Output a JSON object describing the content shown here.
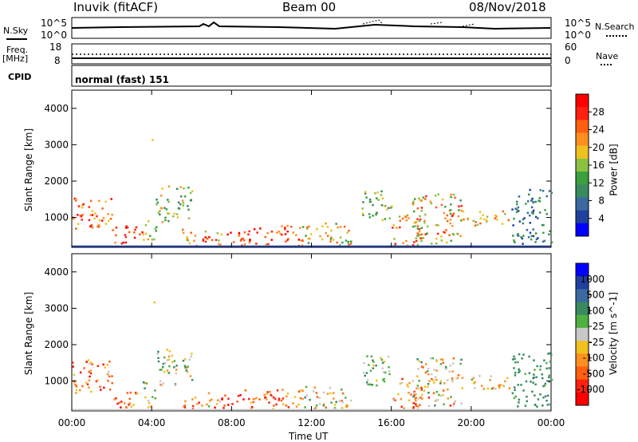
{
  "header": {
    "station": "Inuvik (fitACF)",
    "beam": "Beam 00",
    "date": "08/Nov/2018"
  },
  "status_panels": {
    "nsky": {
      "label": "N.Sky",
      "tick_top": "10^5",
      "tick_bottom": "10^0"
    },
    "nsearch": {
      "label": "N.Search",
      "tick_top": "10^5",
      "tick_bottom": "10^0"
    },
    "freq": {
      "label": "Freq.",
      "unit": "[MHz]",
      "tick_top": "18",
      "tick_bottom": "8"
    },
    "nave": {
      "label": "Nave",
      "tick_top": "60",
      "tick_bottom": "0"
    },
    "cpid": {
      "label": "CPID",
      "value": "normal (fast) 151"
    }
  },
  "x_axis": {
    "label": "Time UT",
    "ticks": [
      "00:00",
      "04:00",
      "08:00",
      "12:00",
      "16:00",
      "20:00",
      "00:00"
    ]
  },
  "colors": {
    "power_scale": [
      "#0000ff",
      "#2040a0",
      "#3a6aa0",
      "#3a8a60",
      "#3aa040",
      "#8cc040",
      "#f0c020",
      "#ff9020",
      "#ff6010",
      "#ff2010",
      "#ff0000"
    ],
    "velocity_scale": [
      "#0000ff",
      "#2040a0",
      "#3a6aa0",
      "#3a8a60",
      "#50b040",
      "#c8c8c8",
      "#f0c020",
      "#ff9020",
      "#ff6010",
      "#ff2010",
      "#ff0000"
    ]
  },
  "chart_data": [
    {
      "type": "heatmap",
      "name": "power",
      "xlabel": "Time UT",
      "ylabel": "Slant Range [km]",
      "ylim": [
        180,
        4500
      ],
      "yticks": [
        "1000",
        "2000",
        "3000",
        "4000"
      ],
      "colorbar_label": "Power [dB]",
      "colorbar_ticks": [
        "4",
        "8",
        "12",
        "16",
        "20",
        "24",
        "28"
      ],
      "grid": false
    },
    {
      "type": "heatmap",
      "name": "velocity",
      "xlabel": "Time UT",
      "ylabel": "Slant Range [km]",
      "ylim": [
        180,
        4500
      ],
      "yticks": [
        "1000",
        "2000",
        "3000",
        "4000"
      ],
      "colorbar_label": "Velocity [m s^-1]",
      "colorbar_ticks": [
        "1000",
        "500",
        "100",
        "25",
        "-25",
        "-100",
        "-500",
        "-1000"
      ],
      "grid": false
    }
  ]
}
